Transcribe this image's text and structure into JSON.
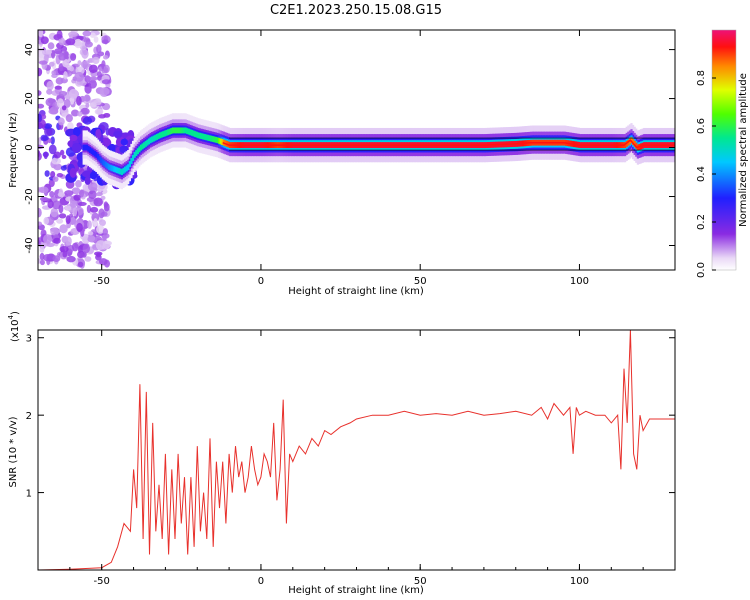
{
  "title": "C2E1.2023.250.15.08.G15",
  "chart_data": [
    {
      "type": "heatmap",
      "title": "C2E1.2023.250.15.08.G15",
      "xlabel": "Height of straight line (km)",
      "ylabel": "Frequency (Hz)",
      "xlim": [
        -70,
        130
      ],
      "ylim": [
        -50,
        48
      ],
      "x_ticks": [
        "-50",
        "0",
        "50",
        "100"
      ],
      "x_tick_values": [
        -50,
        0,
        50,
        100
      ],
      "y_ticks": [
        "40",
        "20",
        "0",
        "-20",
        "-40"
      ],
      "y_tick_values": [
        40,
        20,
        0,
        -20,
        -40
      ],
      "colorbar": {
        "label": "Normalized spectral amplitude",
        "ticks": [
          "0.0",
          "0.2",
          "0.4",
          "0.6",
          "0.8"
        ],
        "tick_values": [
          0.0,
          0.2,
          0.4,
          0.6,
          0.8
        ],
        "range": [
          0,
          1
        ]
      },
      "ridge": {
        "height_km": [
          -55,
          -52,
          -50,
          -48,
          -46,
          -44,
          -42,
          -40,
          -38,
          -35,
          -32,
          -30,
          -28,
          -26,
          -24,
          -22,
          -20,
          -17,
          -14,
          -12,
          -10,
          -5,
          0,
          5,
          10,
          20,
          30,
          40,
          50,
          60,
          70,
          80,
          85,
          90,
          95,
          100,
          105,
          110,
          114,
          116,
          118,
          120,
          125,
          130
        ],
        "frequency_hz": [
          0,
          -3,
          -6,
          -8,
          -9,
          -10,
          -8,
          -3,
          0,
          3,
          5,
          6,
          7,
          7,
          7,
          6,
          5,
          4,
          3,
          2,
          1,
          1,
          1,
          1,
          1,
          1,
          1,
          1,
          1,
          1,
          1,
          1.5,
          2,
          2,
          2,
          1,
          1,
          1,
          1,
          3,
          0,
          1,
          1,
          1
        ],
        "amplitude": [
          0.3,
          0.3,
          0.35,
          0.4,
          0.45,
          0.5,
          0.45,
          0.5,
          0.55,
          0.5,
          0.55,
          0.55,
          0.6,
          0.6,
          0.55,
          0.55,
          0.55,
          0.55,
          0.6,
          0.85,
          0.9,
          0.95,
          0.95,
          0.9,
          0.95,
          0.95,
          0.95,
          0.95,
          0.95,
          0.95,
          0.95,
          0.95,
          0.9,
          0.9,
          0.9,
          0.95,
          0.95,
          0.95,
          0.9,
          0.85,
          0.9,
          0.95,
          0.95,
          0.95
        ]
      }
    },
    {
      "type": "line",
      "xlabel": "Height of straight line (km)",
      "ylabel": "SNR (10 * v/v)",
      "y_multiplier": "(x10",
      "y_multiplier_exp": "4",
      "y_multiplier_close": ")",
      "xlim": [
        -70,
        130
      ],
      "ylim": [
        0,
        3.1
      ],
      "x_ticks": [
        "-50",
        "0",
        "50",
        "100"
      ],
      "x_tick_values": [
        -50,
        0,
        50,
        100
      ],
      "y_ticks": [
        "1",
        "2",
        "3"
      ],
      "y_tick_values": [
        1,
        2,
        3
      ],
      "series": [
        {
          "color": "#e8312c",
          "x": [
            -70,
            -60,
            -50,
            -47,
            -45,
            -43,
            -41,
            -40,
            -39,
            -38,
            -37,
            -36,
            -35,
            -34,
            -33,
            -32,
            -31,
            -30,
            -29,
            -28,
            -27,
            -26,
            -25,
            -24,
            -23,
            -22,
            -21,
            -20,
            -19,
            -18,
            -17,
            -16,
            -15,
            -14,
            -13,
            -12,
            -11,
            -10,
            -9,
            -8,
            -7,
            -6,
            -5,
            -4,
            -3,
            -2,
            -1,
            0,
            1,
            2,
            3,
            4,
            5,
            6,
            7,
            8,
            9,
            10,
            12,
            14,
            16,
            18,
            20,
            22,
            25,
            28,
            30,
            35,
            40,
            45,
            50,
            55,
            60,
            65,
            70,
            75,
            80,
            85,
            88,
            90,
            92,
            95,
            97,
            98,
            99,
            100,
            102,
            105,
            108,
            110,
            112,
            113,
            114,
            115,
            116,
            117,
            118,
            119,
            120,
            122,
            125,
            130
          ],
          "y": [
            0.0,
            0.01,
            0.03,
            0.1,
            0.3,
            0.6,
            0.5,
            1.3,
            0.8,
            2.4,
            0.4,
            2.3,
            0.2,
            1.9,
            0.5,
            1.1,
            0.4,
            1.5,
            0.2,
            1.3,
            0.4,
            1.5,
            0.6,
            1.2,
            0.2,
            1.2,
            0.3,
            1.6,
            0.5,
            1.0,
            0.4,
            1.7,
            0.3,
            1.4,
            0.8,
            1.4,
            0.6,
            1.5,
            1.0,
            1.6,
            1.2,
            1.4,
            1.0,
            1.2,
            1.6,
            1.3,
            1.1,
            1.2,
            1.5,
            1.4,
            1.2,
            1.9,
            0.9,
            1.3,
            2.2,
            0.6,
            1.5,
            1.4,
            1.6,
            1.5,
            1.7,
            1.6,
            1.8,
            1.75,
            1.85,
            1.9,
            1.95,
            2.0,
            2.0,
            2.05,
            2.0,
            2.02,
            2.0,
            2.05,
            2.0,
            2.02,
            2.05,
            2.0,
            2.1,
            1.95,
            2.15,
            2.0,
            2.1,
            1.5,
            2.1,
            2.0,
            2.05,
            2.0,
            2.0,
            1.9,
            2.0,
            1.3,
            2.6,
            1.9,
            3.1,
            1.5,
            1.3,
            2.0,
            1.8,
            1.95,
            1.95,
            1.95
          ]
        }
      ]
    }
  ]
}
